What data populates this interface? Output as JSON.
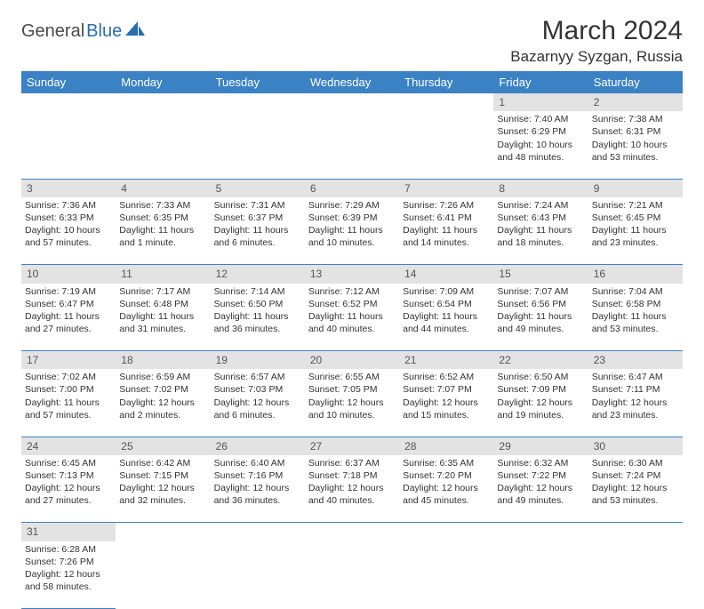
{
  "logo": {
    "part1": "General",
    "part2": "Blue"
  },
  "title": "March 2024",
  "location": "Bazarnyy Syzgan, Russia",
  "colors": {
    "header_bg": "#3b82c4",
    "header_text": "#ffffff",
    "daynum_bg": "#e3e3e3",
    "border": "#3b82c4",
    "logo_blue": "#2a6db3",
    "logo_gray": "#4a4a4a"
  },
  "weekdays": [
    "Sunday",
    "Monday",
    "Tuesday",
    "Wednesday",
    "Thursday",
    "Friday",
    "Saturday"
  ],
  "weeks": [
    {
      "nums": [
        "",
        "",
        "",
        "",
        "",
        "1",
        "2"
      ],
      "cells": [
        null,
        null,
        null,
        null,
        null,
        {
          "sunrise": "Sunrise: 7:40 AM",
          "sunset": "Sunset: 6:29 PM",
          "daylight": "Daylight: 10 hours and 48 minutes."
        },
        {
          "sunrise": "Sunrise: 7:38 AM",
          "sunset": "Sunset: 6:31 PM",
          "daylight": "Daylight: 10 hours and 53 minutes."
        }
      ]
    },
    {
      "nums": [
        "3",
        "4",
        "5",
        "6",
        "7",
        "8",
        "9"
      ],
      "cells": [
        {
          "sunrise": "Sunrise: 7:36 AM",
          "sunset": "Sunset: 6:33 PM",
          "daylight": "Daylight: 10 hours and 57 minutes."
        },
        {
          "sunrise": "Sunrise: 7:33 AM",
          "sunset": "Sunset: 6:35 PM",
          "daylight": "Daylight: 11 hours and 1 minute."
        },
        {
          "sunrise": "Sunrise: 7:31 AM",
          "sunset": "Sunset: 6:37 PM",
          "daylight": "Daylight: 11 hours and 6 minutes."
        },
        {
          "sunrise": "Sunrise: 7:29 AM",
          "sunset": "Sunset: 6:39 PM",
          "daylight": "Daylight: 11 hours and 10 minutes."
        },
        {
          "sunrise": "Sunrise: 7:26 AM",
          "sunset": "Sunset: 6:41 PM",
          "daylight": "Daylight: 11 hours and 14 minutes."
        },
        {
          "sunrise": "Sunrise: 7:24 AM",
          "sunset": "Sunset: 6:43 PM",
          "daylight": "Daylight: 11 hours and 18 minutes."
        },
        {
          "sunrise": "Sunrise: 7:21 AM",
          "sunset": "Sunset: 6:45 PM",
          "daylight": "Daylight: 11 hours and 23 minutes."
        }
      ]
    },
    {
      "nums": [
        "10",
        "11",
        "12",
        "13",
        "14",
        "15",
        "16"
      ],
      "cells": [
        {
          "sunrise": "Sunrise: 7:19 AM",
          "sunset": "Sunset: 6:47 PM",
          "daylight": "Daylight: 11 hours and 27 minutes."
        },
        {
          "sunrise": "Sunrise: 7:17 AM",
          "sunset": "Sunset: 6:48 PM",
          "daylight": "Daylight: 11 hours and 31 minutes."
        },
        {
          "sunrise": "Sunrise: 7:14 AM",
          "sunset": "Sunset: 6:50 PM",
          "daylight": "Daylight: 11 hours and 36 minutes."
        },
        {
          "sunrise": "Sunrise: 7:12 AM",
          "sunset": "Sunset: 6:52 PM",
          "daylight": "Daylight: 11 hours and 40 minutes."
        },
        {
          "sunrise": "Sunrise: 7:09 AM",
          "sunset": "Sunset: 6:54 PM",
          "daylight": "Daylight: 11 hours and 44 minutes."
        },
        {
          "sunrise": "Sunrise: 7:07 AM",
          "sunset": "Sunset: 6:56 PM",
          "daylight": "Daylight: 11 hours and 49 minutes."
        },
        {
          "sunrise": "Sunrise: 7:04 AM",
          "sunset": "Sunset: 6:58 PM",
          "daylight": "Daylight: 11 hours and 53 minutes."
        }
      ]
    },
    {
      "nums": [
        "17",
        "18",
        "19",
        "20",
        "21",
        "22",
        "23"
      ],
      "cells": [
        {
          "sunrise": "Sunrise: 7:02 AM",
          "sunset": "Sunset: 7:00 PM",
          "daylight": "Daylight: 11 hours and 57 minutes."
        },
        {
          "sunrise": "Sunrise: 6:59 AM",
          "sunset": "Sunset: 7:02 PM",
          "daylight": "Daylight: 12 hours and 2 minutes."
        },
        {
          "sunrise": "Sunrise: 6:57 AM",
          "sunset": "Sunset: 7:03 PM",
          "daylight": "Daylight: 12 hours and 6 minutes."
        },
        {
          "sunrise": "Sunrise: 6:55 AM",
          "sunset": "Sunset: 7:05 PM",
          "daylight": "Daylight: 12 hours and 10 minutes."
        },
        {
          "sunrise": "Sunrise: 6:52 AM",
          "sunset": "Sunset: 7:07 PM",
          "daylight": "Daylight: 12 hours and 15 minutes."
        },
        {
          "sunrise": "Sunrise: 6:50 AM",
          "sunset": "Sunset: 7:09 PM",
          "daylight": "Daylight: 12 hours and 19 minutes."
        },
        {
          "sunrise": "Sunrise: 6:47 AM",
          "sunset": "Sunset: 7:11 PM",
          "daylight": "Daylight: 12 hours and 23 minutes."
        }
      ]
    },
    {
      "nums": [
        "24",
        "25",
        "26",
        "27",
        "28",
        "29",
        "30"
      ],
      "cells": [
        {
          "sunrise": "Sunrise: 6:45 AM",
          "sunset": "Sunset: 7:13 PM",
          "daylight": "Daylight: 12 hours and 27 minutes."
        },
        {
          "sunrise": "Sunrise: 6:42 AM",
          "sunset": "Sunset: 7:15 PM",
          "daylight": "Daylight: 12 hours and 32 minutes."
        },
        {
          "sunrise": "Sunrise: 6:40 AM",
          "sunset": "Sunset: 7:16 PM",
          "daylight": "Daylight: 12 hours and 36 minutes."
        },
        {
          "sunrise": "Sunrise: 6:37 AM",
          "sunset": "Sunset: 7:18 PM",
          "daylight": "Daylight: 12 hours and 40 minutes."
        },
        {
          "sunrise": "Sunrise: 6:35 AM",
          "sunset": "Sunset: 7:20 PM",
          "daylight": "Daylight: 12 hours and 45 minutes."
        },
        {
          "sunrise": "Sunrise: 6:32 AM",
          "sunset": "Sunset: 7:22 PM",
          "daylight": "Daylight: 12 hours and 49 minutes."
        },
        {
          "sunrise": "Sunrise: 6:30 AM",
          "sunset": "Sunset: 7:24 PM",
          "daylight": "Daylight: 12 hours and 53 minutes."
        }
      ]
    },
    {
      "nums": [
        "31",
        "",
        "",
        "",
        "",
        "",
        ""
      ],
      "cells": [
        {
          "sunrise": "Sunrise: 6:28 AM",
          "sunset": "Sunset: 7:26 PM",
          "daylight": "Daylight: 12 hours and 58 minutes."
        },
        null,
        null,
        null,
        null,
        null,
        null
      ]
    }
  ]
}
